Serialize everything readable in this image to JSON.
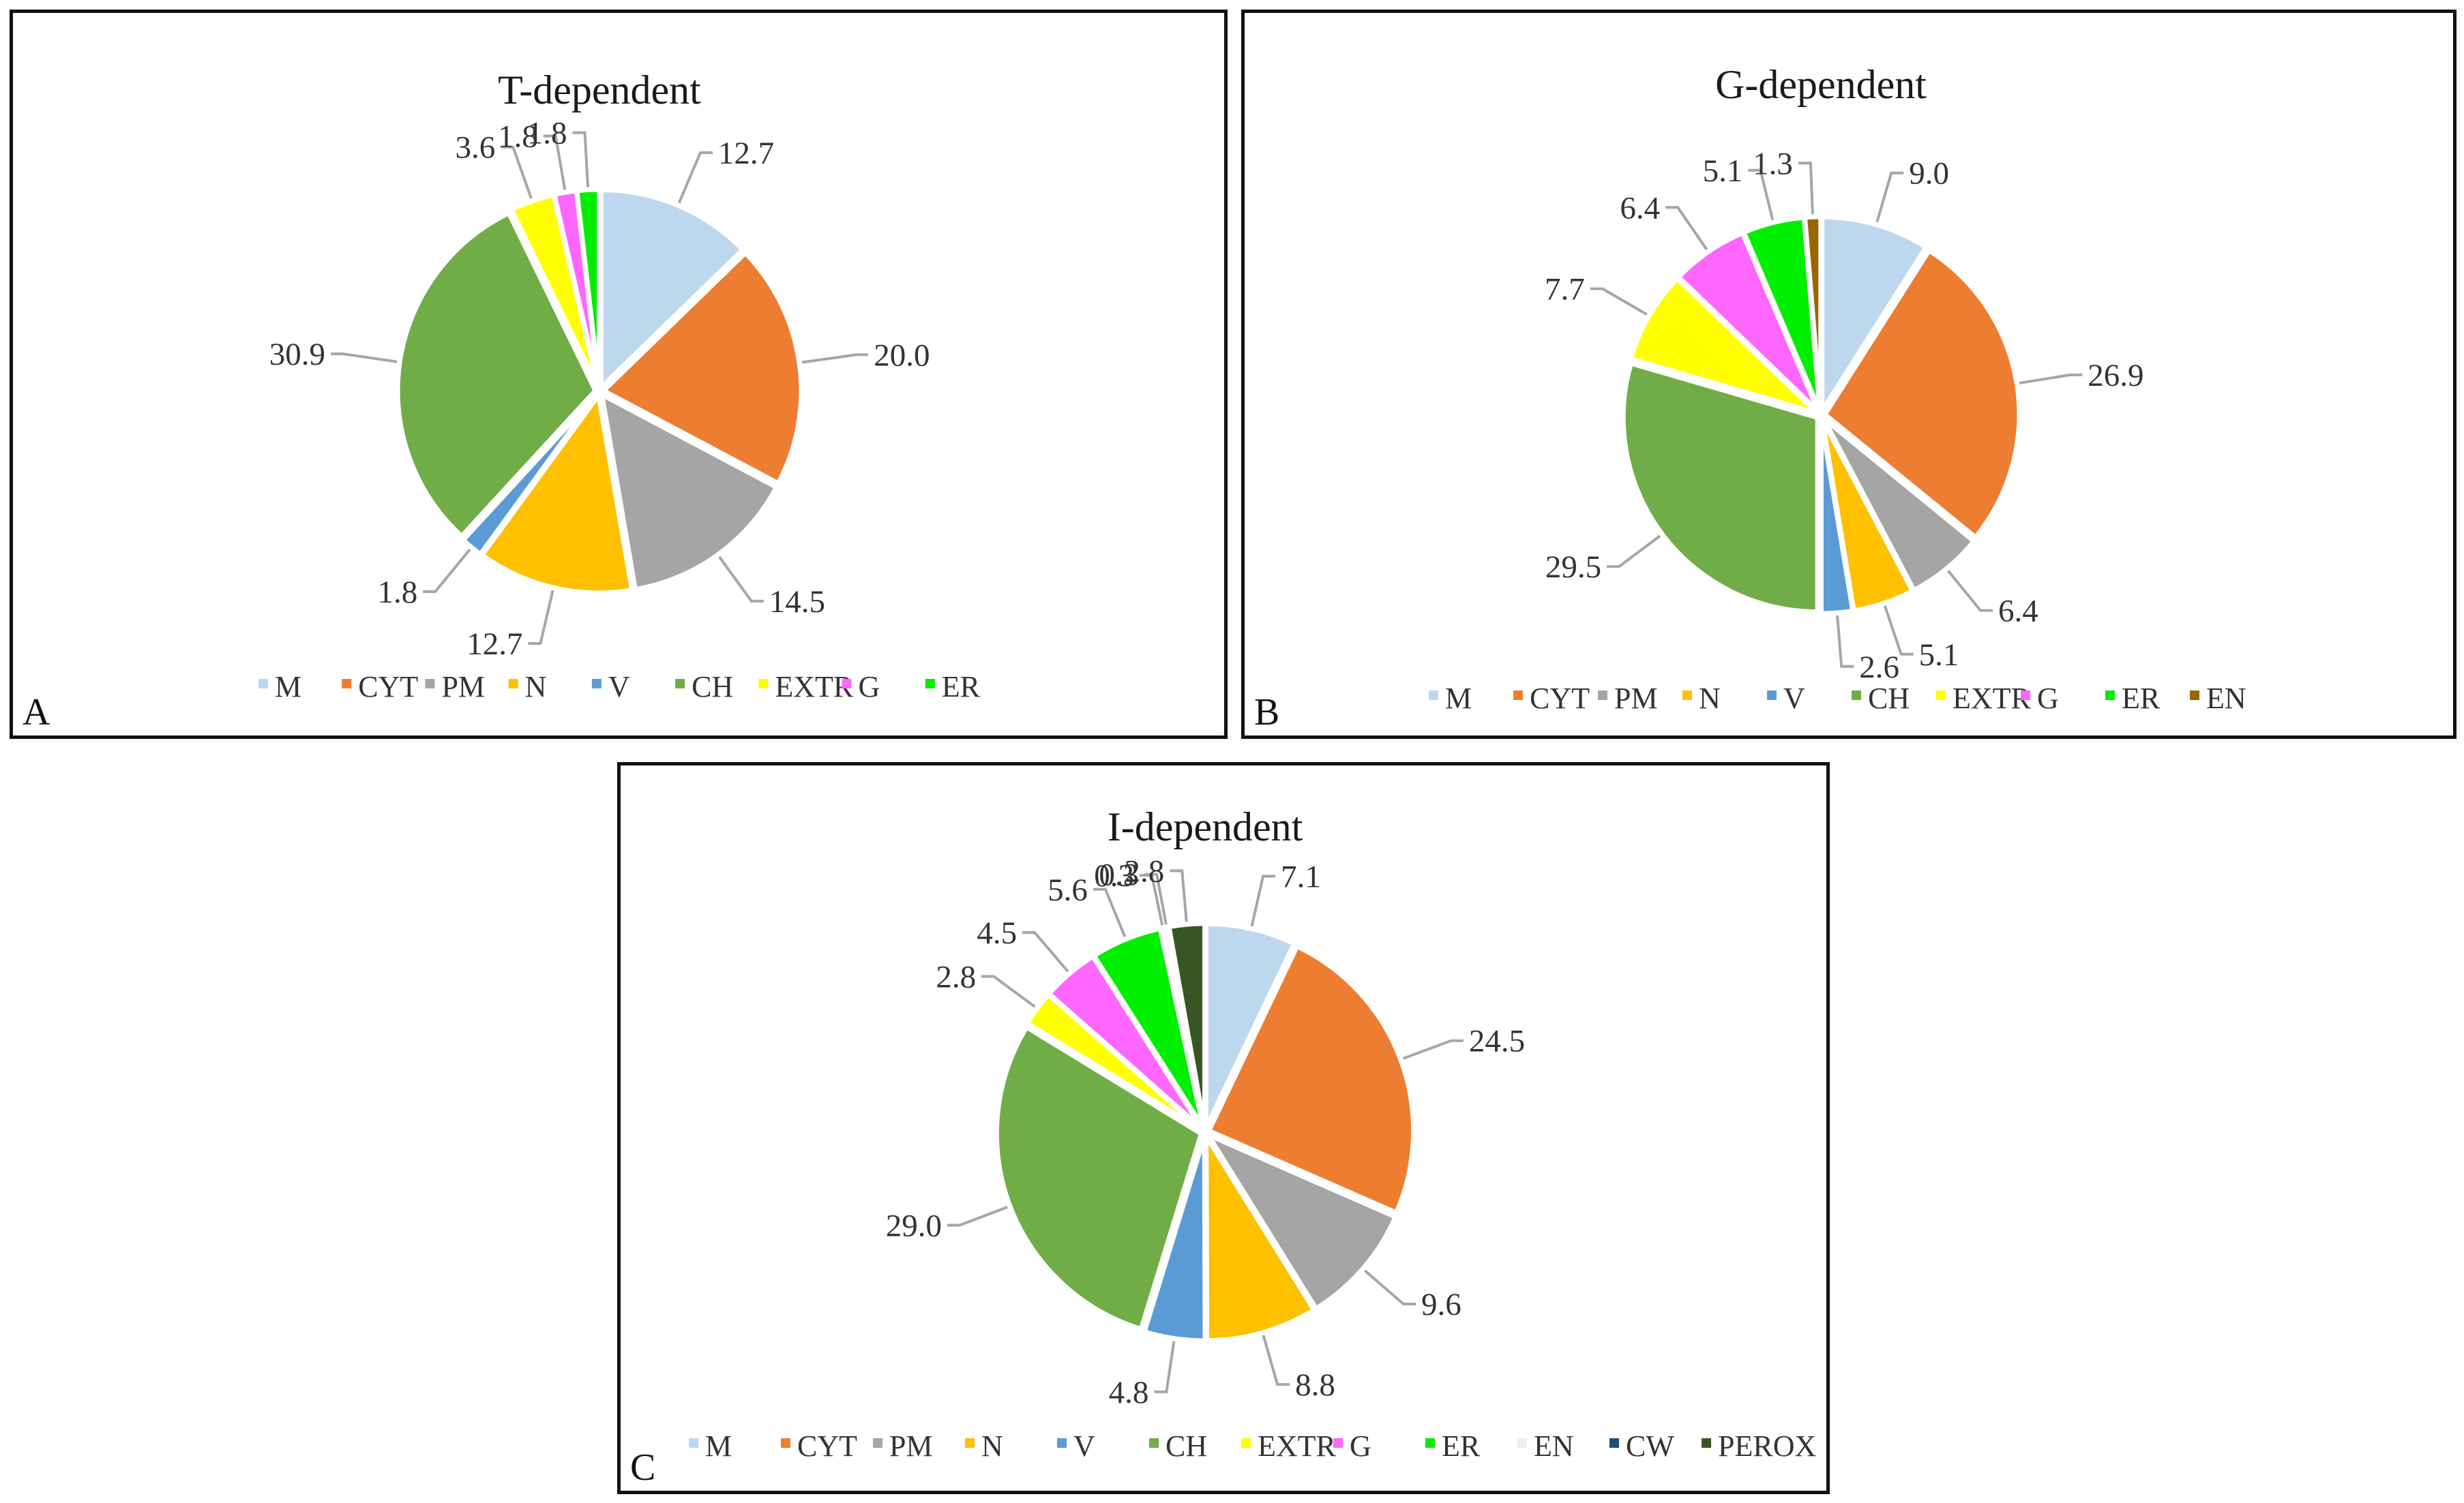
{
  "chart_data": [
    {
      "type": "pie",
      "panel": "A",
      "title": "T-dependent",
      "categories": [
        "M",
        "CYT",
        "PM",
        "N",
        "V",
        "CH",
        "EXTR",
        "G",
        "ER"
      ],
      "values": [
        12.7,
        20.0,
        14.5,
        12.7,
        1.8,
        30.9,
        3.6,
        1.8,
        1.8
      ],
      "labels": [
        "12.7",
        "20.0",
        "14.5",
        "12.7",
        "1.8",
        "30.9",
        "3.6",
        "1.8",
        "1.8"
      ],
      "legend_position": "bottom"
    },
    {
      "type": "pie",
      "panel": "B",
      "title": "G-dependent",
      "categories": [
        "M",
        "CYT",
        "PM",
        "N",
        "V",
        "CH",
        "EXTR",
        "G",
        "ER",
        "EN"
      ],
      "values": [
        9.0,
        26.9,
        6.4,
        5.1,
        2.6,
        29.5,
        7.7,
        6.4,
        5.1,
        1.3
      ],
      "labels": [
        "9.0",
        "26.9",
        "6.4",
        "5.1",
        "2.6",
        "29.5",
        "7.7",
        "6.4",
        "5.1",
        "1.3"
      ],
      "legend_position": "bottom"
    },
    {
      "type": "pie",
      "panel": "C",
      "title": "I-dependent",
      "categories": [
        "M",
        "CYT",
        "PM",
        "N",
        "V",
        "CH",
        "EXTR",
        "G",
        "ER",
        "EN",
        "CW",
        "PEROX"
      ],
      "values": [
        7.1,
        24.5,
        9.6,
        8.8,
        4.8,
        29.0,
        2.8,
        4.5,
        5.6,
        0.3,
        0.3,
        2.8
      ],
      "labels": [
        "7.1",
        "24.5",
        "9.6",
        "8.8",
        "4.8",
        "29.0",
        "2.8",
        "4.5",
        "5.6",
        "0.3",
        "0.3",
        "2.8"
      ],
      "legend_position": "bottom"
    }
  ],
  "colors": {
    "M": "#bdd7ee",
    "CYT": "#ed7d31",
    "PM": "#a5a5a5",
    "N": "#ffc000",
    "V": "#5b9bd5",
    "CH": "#70ad47",
    "EXTR": "#ffff00",
    "G": "#ff66ff",
    "ER": "#00ee00",
    "EN": "#996600",
    "CW": "#1f4e79",
    "PEROX": "#375623"
  },
  "colors_overrides": {
    "C": {
      "EN": "#eeeeee"
    }
  },
  "panel_letters": {
    "A": "A",
    "B": "B",
    "C": "C"
  }
}
